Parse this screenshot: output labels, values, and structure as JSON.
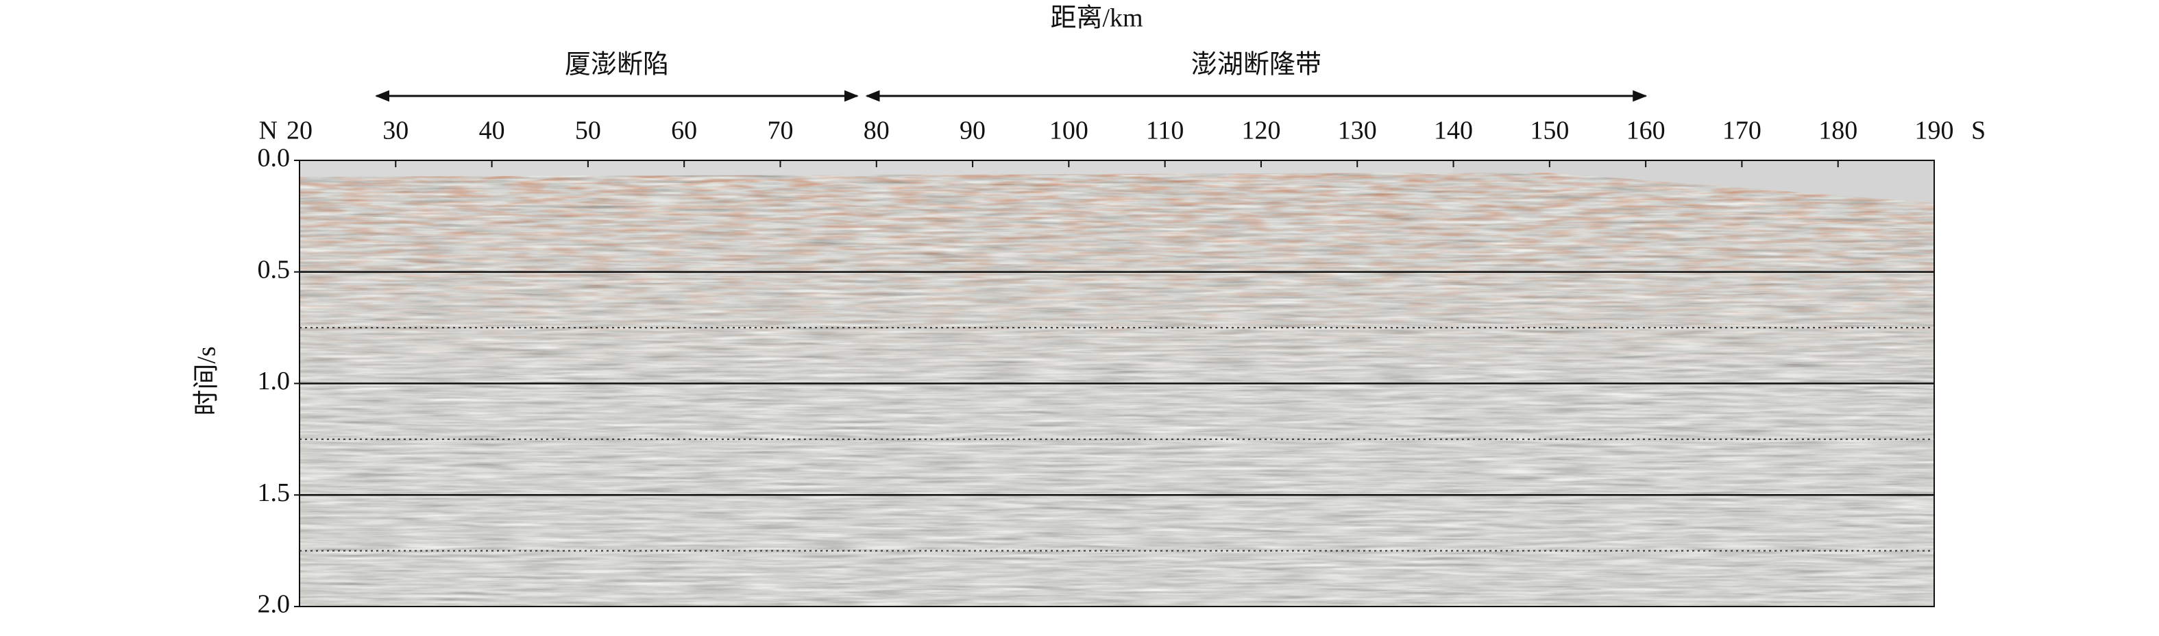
{
  "chart_data": {
    "type": "seismic-section",
    "x_label": "距离/km",
    "y_label": "时间/s",
    "left_label": "N",
    "right_label": "S",
    "xlim": [
      20,
      190
    ],
    "xticks": [
      20,
      30,
      40,
      50,
      60,
      70,
      80,
      90,
      100,
      110,
      120,
      130,
      140,
      150,
      160,
      170,
      180,
      190
    ],
    "ylim": [
      0,
      2
    ],
    "yticks": [
      {
        "value": 0,
        "label": "0.0"
      },
      0.5,
      {
        "value": 1,
        "label": "1.0"
      },
      1.5,
      {
        "value": 2,
        "label": "2.0"
      }
    ],
    "minor_grid": [
      0.75,
      1.25,
      1.75
    ],
    "grid": true,
    "regions": [
      {
        "label": "厦澎断陷",
        "from": 28,
        "to": 78
      },
      {
        "label": "澎湖断隆带",
        "from": 79,
        "to": 160
      }
    ]
  }
}
